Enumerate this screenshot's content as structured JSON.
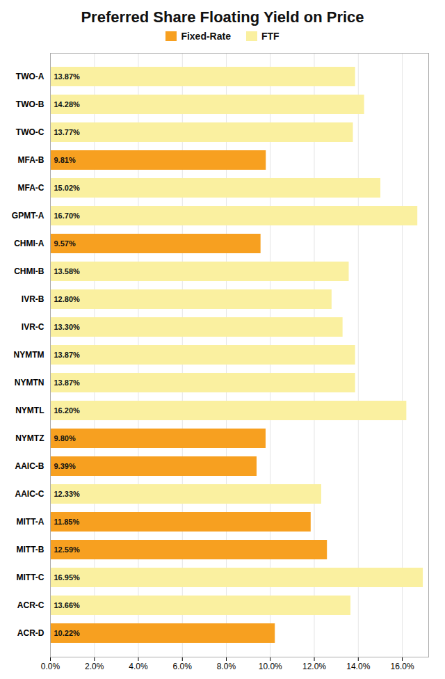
{
  "chart_data": {
    "type": "bar",
    "orientation": "horizontal",
    "title": "Preferred Share Floating Yield on Price",
    "categories": [
      "TWO-A",
      "TWO-B",
      "TWO-C",
      "MFA-B",
      "MFA-C",
      "GPMT-A",
      "CHMI-A",
      "CHMI-B",
      "IVR-B",
      "IVR-C",
      "NYMTM",
      "NYMTN",
      "NYMTL",
      "NYMTZ",
      "AAIC-B",
      "AAIC-C",
      "MITT-A",
      "MITT-B",
      "MITT-C",
      "ACR-C",
      "ACR-D"
    ],
    "series": [
      {
        "name": "Fixed-Rate",
        "color": "#F7A020",
        "values": [
          null,
          null,
          null,
          9.81,
          null,
          null,
          9.57,
          null,
          null,
          null,
          null,
          null,
          null,
          9.8,
          9.39,
          null,
          11.85,
          12.59,
          null,
          null,
          10.22
        ],
        "value_labels": [
          null,
          null,
          null,
          "9.81%",
          null,
          null,
          "9.57%",
          null,
          null,
          null,
          null,
          null,
          null,
          "9.80%",
          "9.39%",
          null,
          "11.85%",
          "12.59%",
          null,
          null,
          "10.22%"
        ]
      },
      {
        "name": "FTF",
        "color": "#FAF0A0",
        "values": [
          13.87,
          14.28,
          13.77,
          null,
          15.02,
          16.7,
          null,
          13.58,
          12.8,
          13.3,
          13.87,
          13.87,
          16.2,
          null,
          null,
          12.33,
          null,
          null,
          16.95,
          13.66,
          null
        ],
        "value_labels": [
          "13.87%",
          "14.28%",
          "13.77%",
          null,
          "15.02%",
          "16.70%",
          null,
          "13.58%",
          "12.80%",
          "13.30%",
          "13.87%",
          "13.87%",
          "16.20%",
          null,
          null,
          "12.33%",
          null,
          null,
          "16.95%",
          "13.66%",
          null
        ]
      }
    ],
    "xlim": [
      0,
      17.2
    ],
    "xticks": [
      {
        "value": 0,
        "label": "0.0%"
      },
      {
        "value": 2,
        "label": "2.0%"
      },
      {
        "value": 4,
        "label": "4.0%"
      },
      {
        "value": 6,
        "label": "6.0%"
      },
      {
        "value": 8,
        "label": "8.0%"
      },
      {
        "value": 10,
        "label": "10.0%"
      },
      {
        "value": 12,
        "label": "12.0%"
      },
      {
        "value": 14,
        "label": "14.0%"
      },
      {
        "value": 16,
        "label": "16.0%"
      }
    ],
    "grid": true,
    "legend": "top",
    "data_labels": true
  }
}
